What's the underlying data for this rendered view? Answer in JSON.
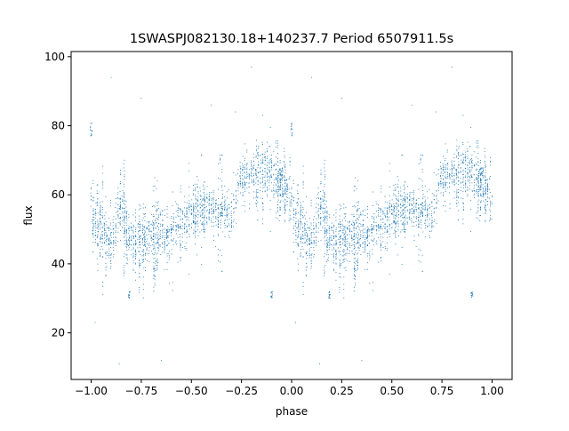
{
  "chart_data": {
    "type": "scatter",
    "title": "1SWASPJ082130.18+140237.7 Period 6507911.5s",
    "xlabel": "phase",
    "ylabel": "flux",
    "xlim": [
      -1.1,
      1.1
    ],
    "ylim": [
      6.5,
      101.5
    ],
    "xticks": [
      -1.0,
      -0.75,
      -0.5,
      -0.25,
      0.0,
      0.25,
      0.5,
      0.75,
      1.0
    ],
    "xtick_labels": [
      "−1.00",
      "−0.75",
      "−0.50",
      "−0.25",
      "0.00",
      "0.25",
      "0.50",
      "0.75",
      "1.00"
    ],
    "yticks": [
      20,
      40,
      60,
      80,
      100
    ],
    "ytick_labels": [
      "20",
      "40",
      "60",
      "80",
      "100"
    ],
    "grid": false,
    "legend": "none",
    "marker_color": "#1f77b4",
    "phase_curve": [
      [
        0.0,
        58
      ],
      [
        0.02,
        52
      ],
      [
        0.06,
        50
      ],
      [
        0.1,
        44
      ],
      [
        0.14,
        58
      ],
      [
        0.18,
        50
      ],
      [
        0.22,
        46
      ],
      [
        0.26,
        47
      ],
      [
        0.3,
        48
      ],
      [
        0.34,
        50
      ],
      [
        0.38,
        46
      ],
      [
        0.42,
        51
      ],
      [
        0.46,
        52
      ],
      [
        0.5,
        54
      ],
      [
        0.54,
        55
      ],
      [
        0.58,
        56
      ],
      [
        0.62,
        55
      ],
      [
        0.66,
        56
      ],
      [
        0.7,
        53
      ],
      [
        0.74,
        64
      ],
      [
        0.78,
        65
      ],
      [
        0.82,
        66
      ],
      [
        0.86,
        67
      ],
      [
        0.9,
        66
      ],
      [
        0.94,
        63
      ],
      [
        0.98,
        61
      ],
      [
        1.0,
        58
      ]
    ],
    "clusters": [
      {
        "x": -0.99,
        "y_center": 50,
        "y_spread": 3
      },
      {
        "x": -1.0,
        "y_center": 79,
        "y_spread": 2
      },
      {
        "x": 0.0,
        "y_center": 79,
        "y_spread": 2
      },
      {
        "x": -0.82,
        "y_center": 43,
        "y_spread": 4
      },
      {
        "x": 0.18,
        "y_center": 43,
        "y_spread": 4
      },
      {
        "x": -0.81,
        "y_center": 31,
        "y_spread": 1
      },
      {
        "x": 0.19,
        "y_center": 31,
        "y_spread": 1
      },
      {
        "x": -0.62,
        "y_center": 49,
        "y_spread": 2
      },
      {
        "x": 0.38,
        "y_center": 49,
        "y_spread": 2
      },
      {
        "x": -0.35,
        "y_center": 56,
        "y_spread": 2
      },
      {
        "x": 0.65,
        "y_center": 56,
        "y_spread": 2
      },
      {
        "x": -0.1,
        "y_center": 31,
        "y_spread": 1
      },
      {
        "x": 0.9,
        "y_center": 31,
        "y_spread": 1
      },
      {
        "x": -0.05,
        "y_center": 66,
        "y_spread": 2
      },
      {
        "x": 0.95,
        "y_center": 66,
        "y_spread": 2
      }
    ],
    "outliers": [
      [
        -0.9,
        94
      ],
      [
        0.1,
        94
      ],
      [
        -0.65,
        12
      ],
      [
        0.35,
        12
      ],
      [
        -0.4,
        86
      ],
      [
        0.6,
        86
      ],
      [
        -0.2,
        97
      ],
      [
        0.8,
        97
      ],
      [
        -0.28,
        84
      ],
      [
        0.72,
        84
      ],
      [
        -0.75,
        88
      ],
      [
        0.25,
        88
      ],
      [
        -0.98,
        23
      ],
      [
        0.02,
        23
      ],
      [
        -0.86,
        11
      ],
      [
        0.14,
        11
      ]
    ]
  }
}
